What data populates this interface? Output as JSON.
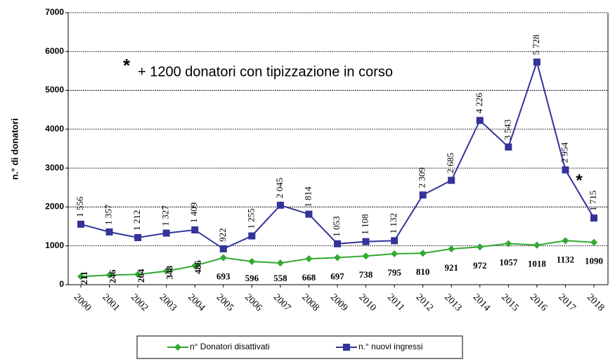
{
  "chart_data": {
    "type": "line",
    "ylabel": "n.° di donatori",
    "annotations": [
      "*",
      "+ 1200 donatori con tipizzazione in corso",
      "*"
    ],
    "categories": [
      "2000",
      "2001",
      "2002",
      "2003",
      "2004",
      "2005",
      "2006",
      "2007",
      "2008",
      "2009",
      "2010",
      "2011",
      "2012",
      "2013",
      "2014",
      "2015",
      "2016",
      "2017",
      "2018"
    ],
    "series": [
      {
        "name": "n° Donatori disattivati",
        "color": "#33a833",
        "marker": "diamond",
        "values": [
          211,
          246,
          264,
          348,
          486,
          693,
          596,
          558,
          668,
          697,
          738,
          795,
          810,
          921,
          972,
          1057,
          1018,
          1132,
          1090
        ]
      },
      {
        "name": "n.° nuovi ingressi",
        "color": "#33339a",
        "marker": "square",
        "values": [
          1556,
          1357,
          1212,
          1327,
          1409,
          922,
          1255,
          2045,
          1814,
          1053,
          1108,
          1132,
          2309,
          2685,
          4226,
          3543,
          5728,
          2954,
          1715
        ],
        "value_labels": [
          "1 556",
          "1 357",
          "1 212",
          "1 327",
          "1 409",
          "922",
          "1 255",
          "2 045",
          "1 814",
          "1 053",
          "1 108",
          "1 132",
          "2 309",
          "2 685",
          "4 226",
          "3 543",
          "5 728",
          "2 954",
          "1 715"
        ]
      }
    ],
    "ylim": [
      0,
      7000
    ],
    "yticks": [
      0,
      1000,
      2000,
      3000,
      4000,
      5000,
      6000,
      7000
    ],
    "grid": true
  }
}
